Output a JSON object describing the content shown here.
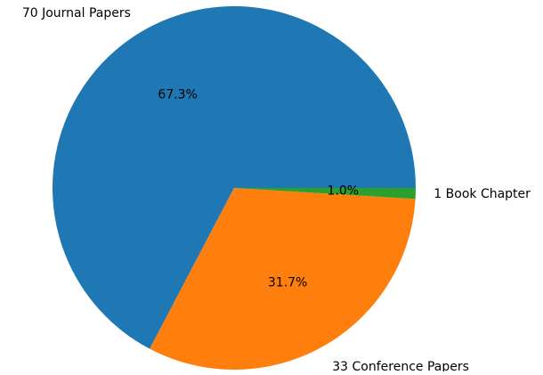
{
  "chart_data": {
    "type": "pie",
    "title": "",
    "slices": [
      {
        "label": "70 Journal Papers",
        "value": 70,
        "pct_label": "67.3%",
        "color": "#1f77b4"
      },
      {
        "label": "33 Conference Papers",
        "value": 33,
        "pct_label": "31.7%",
        "color": "#ff7f0e"
      },
      {
        "label": "1 Book Chapter",
        "value": 1,
        "pct_label": "1.0%",
        "color": "#2ca02c"
      }
    ],
    "start_angle_deg": 0,
    "direction": "counterclockwise",
    "legend": "none"
  }
}
